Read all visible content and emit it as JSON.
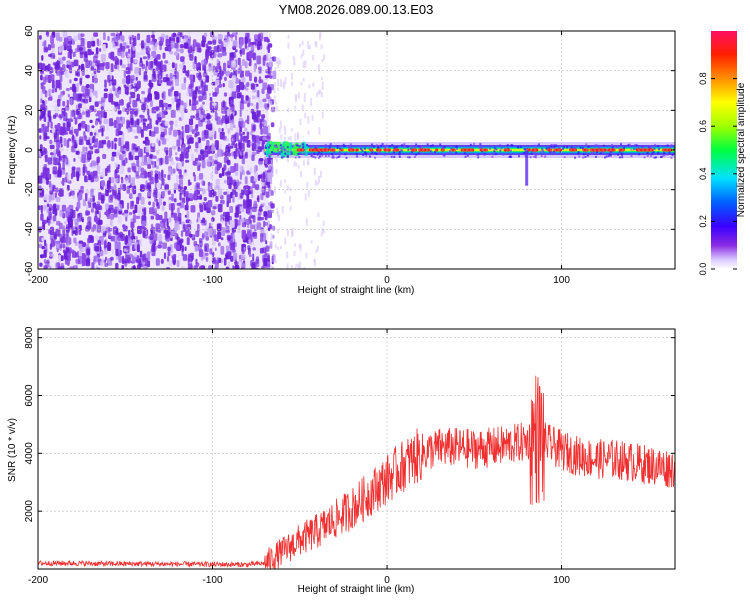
{
  "title": "YM08.2026.089.00.13.E03",
  "colors": {
    "snr_line": "#f03030",
    "frame": "#000000",
    "grid": "#bbbbbb",
    "noise_purple": "#7a2fe0"
  },
  "chart_data": [
    {
      "type": "heatmap",
      "xlabel": "Height of straight line (km)",
      "ylabel": "Frequency (Hz)",
      "xlim": [
        -200,
        165
      ],
      "ylim": [
        -60,
        60
      ],
      "x_ticks": [
        -200,
        -100,
        0,
        100
      ],
      "x_tick_labels": [
        "-200",
        "-100",
        "0",
        "100"
      ],
      "y_ticks": [
        -60,
        -40,
        -20,
        0,
        20,
        40,
        60
      ],
      "y_tick_labels": [
        "-60",
        "-40",
        "-20",
        "0",
        "20",
        "40",
        "60"
      ],
      "grid": true,
      "colorbar": {
        "label": "Normalized spectral amplitude",
        "range": [
          0,
          1
        ],
        "ticks": [
          0.0,
          0.2,
          0.4,
          0.6,
          0.8
        ],
        "tick_labels": [
          "0.0",
          "0.2",
          "0.4",
          "0.6",
          "0.8"
        ],
        "colormap": "hsv"
      },
      "features": {
        "noise_region_x": [
          -200,
          -68
        ],
        "signal_band_x": [
          -70,
          165
        ],
        "signal_band_freq_center": 0,
        "dip_at_x": 80,
        "dip_min_freq": -18
      }
    },
    {
      "type": "line",
      "xlabel": "Height of straight line (km)",
      "ylabel": "SNR (10 * v/v)",
      "xlim": [
        -200,
        165
      ],
      "ylim": [
        0,
        8300
      ],
      "x_ticks": [
        -200,
        -100,
        0,
        100
      ],
      "x_tick_labels": [
        "-200",
        "-100",
        "0",
        "100"
      ],
      "y_ticks": [
        2000,
        4000,
        6000,
        8000
      ],
      "y_tick_labels": [
        "2000",
        "4000",
        "6000",
        "8000"
      ],
      "grid": true,
      "series": [
        {
          "x": [
            -200,
            -180,
            -160,
            -140,
            -120,
            -100,
            -80,
            -70,
            -60,
            -50,
            -40,
            -30,
            -20,
            -10,
            0,
            10,
            20,
            30,
            40,
            50,
            60,
            70,
            80,
            85,
            90,
            100,
            110,
            120,
            130,
            140,
            150,
            160,
            165
          ],
          "y": [
            200,
            200,
            180,
            180,
            170,
            160,
            150,
            200,
            600,
            1000,
            1300,
            1700,
            2100,
            2600,
            3100,
            3600,
            4000,
            4200,
            4200,
            4150,
            4200,
            4300,
            4400,
            4600,
            4400,
            4100,
            3900,
            3800,
            3800,
            3700,
            3600,
            3500,
            3500
          ]
        }
      ]
    }
  ]
}
